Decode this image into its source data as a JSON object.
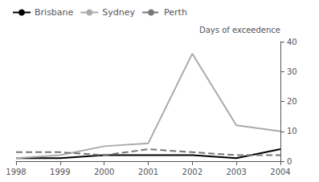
{
  "chart_data": {
    "type": "line",
    "x": [
      1998,
      1999,
      2000,
      2001,
      2002,
      2003,
      2004
    ],
    "series": [
      {
        "name": "Brisbane",
        "color": "#000000",
        "line_style": "solid",
        "values": [
          1,
          1,
          2,
          2,
          2,
          1,
          4
        ]
      },
      {
        "name": "Sydney",
        "color": "#aaaaaa",
        "line_style": "solid",
        "values": [
          1,
          2,
          5,
          6,
          36,
          12,
          10
        ]
      },
      {
        "name": "Perth",
        "color": "#777777",
        "line_style": "dashed",
        "values": [
          3,
          3,
          2,
          4,
          3,
          2,
          2
        ]
      }
    ],
    "y_label": "Days of exceedence",
    "xlim": [
      1998,
      2004
    ],
    "xticks": [
      1998,
      1999,
      2000,
      2001,
      2002,
      2003,
      2004
    ],
    "ylim": [
      0,
      40
    ],
    "yticks": [
      0,
      10,
      20,
      30,
      40
    ],
    "grid": false,
    "legend": "upper left"
  }
}
